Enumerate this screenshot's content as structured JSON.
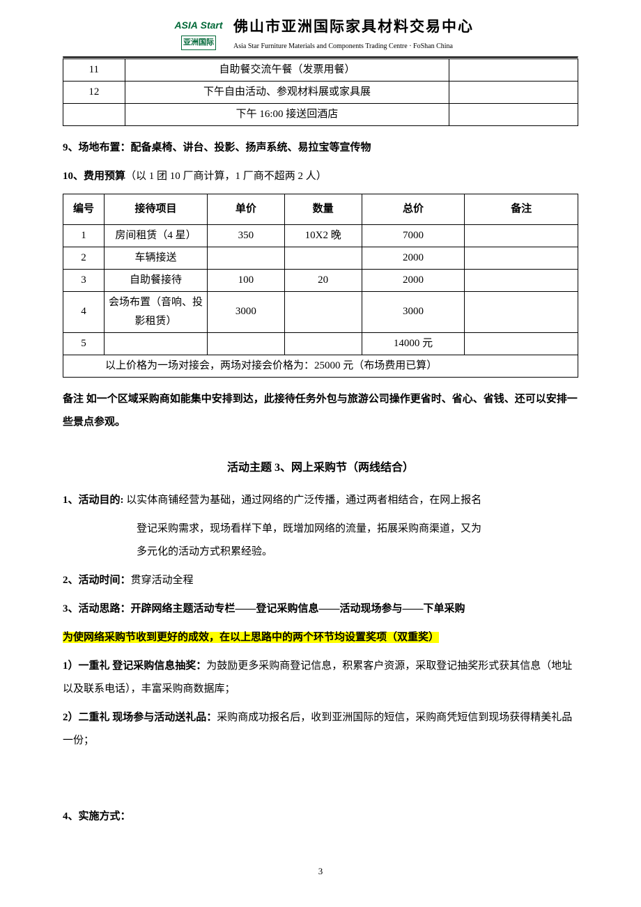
{
  "header": {
    "logo_top": "ASIA",
    "logo_start": "Start",
    "logo_bottom": "亚洲国际",
    "title_cn": "佛山市亚洲国际家具材料交易中心",
    "title_en": "Asia Star Furniture Materials and Components Trading Centre · FoShan China"
  },
  "table1": {
    "rows": [
      {
        "num": "11",
        "content": "自助餐交流午餐（发票用餐）",
        "note": ""
      },
      {
        "num": "12",
        "content": "下午自由活动、参观材料展或家具展",
        "note": ""
      },
      {
        "num": "",
        "content": "下午 16:00 接送回酒店",
        "note": ""
      }
    ]
  },
  "section9": {
    "label": "9、场地布置：",
    "text": "配备桌椅、讲台、投影、扬声系统、易拉宝等宣传物"
  },
  "section10": {
    "label": "10、费用预算",
    "text": "（以 1 团 10 厂商计算，1 厂商不超两 2 人）"
  },
  "table2": {
    "headers": {
      "num": "编号",
      "item": "接待项目",
      "unit_price": "单价",
      "qty": "数量",
      "total": "总价",
      "note": "备注"
    },
    "rows": [
      {
        "num": "1",
        "item": "房间租赁（4 星）",
        "unit_price": "350",
        "qty": "10X2 晚",
        "total": "7000",
        "note": ""
      },
      {
        "num": "2",
        "item": "车辆接送",
        "unit_price": "",
        "qty": "",
        "total": "2000",
        "note": ""
      },
      {
        "num": "3",
        "item": "自助餐接待",
        "unit_price": "100",
        "qty": "20",
        "total": "2000",
        "note": ""
      },
      {
        "num": "4",
        "item": "会场布置（音响、投影租赁）",
        "unit_price": "3000",
        "qty": "",
        "total": "3000",
        "note": ""
      },
      {
        "num": "5",
        "item": "",
        "unit_price": "",
        "qty": "",
        "total": "14000 元",
        "note": ""
      }
    ],
    "footer": "以上价格为一场对接会，两场对接会价格为：25000  元（布场费用已算）"
  },
  "remark": {
    "label": "备注",
    "text": " 如一个区域采购商如能集中安排到达，此接待任务外包与旅游公司操作更省时、省心、省钱、还可以安排一些景点参观。"
  },
  "section_title": "活动主题 3、网上采购节（两线结合）",
  "item1": {
    "label": "1、活动目的: ",
    "line1": "以实体商铺经营为基础，通过网络的广泛传播，通过两者相结合，在网上报名",
    "line2": "登记采购需求，现场看样下单，既增加网络的流量，拓展采购商渠道，又为",
    "line3": "多元化的活动方式积累经验。"
  },
  "item2": {
    "label": "2、活动时间：",
    "text": "贯穿活动全程"
  },
  "item3": {
    "label": "3、活动思路：",
    "text": "开辟网络主题活动专栏——登记采购信息——活动现场参与——下单采购"
  },
  "highlight_text": "为使网络采购节收到更好的成效，在以上思路中的两个环节均设置奖项（双重奖）",
  "reward1": {
    "label": "1）一重礼 登记采购信息抽奖：",
    "text": "为鼓励更多采购商登记信息，积累客户资源，采取登记抽奖形式获其信息（地址以及联系电话），丰富采购商数据库；"
  },
  "reward2": {
    "label": "2）二重礼 现场参与活动送礼品：",
    "text": "采购商成功报名后，收到亚洲国际的短信，采购商凭短信到现场获得精美礼品一份；"
  },
  "item4": {
    "label": "4、实施方式："
  },
  "page_number": "3"
}
